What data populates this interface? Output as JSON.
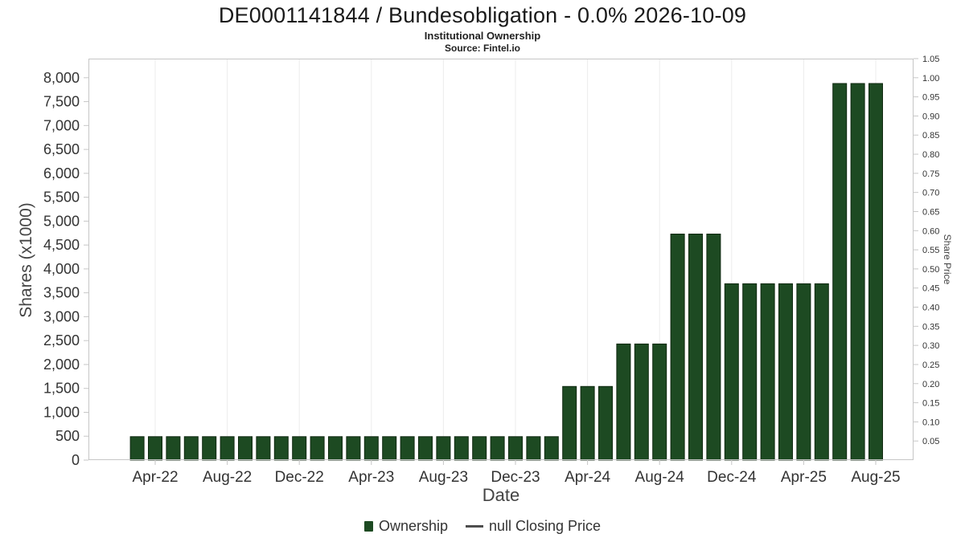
{
  "colors": {
    "bar": "#1d4a22",
    "bar_border": "#102911",
    "grid": "#ececec",
    "axis": "#c6c6c6",
    "text": "#333333"
  },
  "chart_data": {
    "type": "bar",
    "title": "DE0001141844 / Bundesobligation - 0.0% 2026-10-09",
    "subtitle": "Institutional Ownership",
    "source": "Source: Fintel.io",
    "xlabel": "Date",
    "ylabel_left": "Shares (x1000)",
    "ylabel_right": "Share Price",
    "legend": {
      "ownership": "Ownership",
      "price": "null Closing Price"
    },
    "x": [
      "Mar-22",
      "Apr-22",
      "May-22",
      "Jun-22",
      "Jul-22",
      "Aug-22",
      "Sep-22",
      "Oct-22",
      "Nov-22",
      "Dec-22",
      "Jan-23",
      "Feb-23",
      "Mar-23",
      "Apr-23",
      "May-23",
      "Jun-23",
      "Jul-23",
      "Aug-23",
      "Sep-23",
      "Oct-23",
      "Nov-23",
      "Dec-23",
      "Jan-24",
      "Feb-24",
      "Mar-24",
      "Apr-24",
      "May-24",
      "Jun-24",
      "Jul-24",
      "Aug-24",
      "Sep-24",
      "Oct-24",
      "Nov-24",
      "Dec-24",
      "Jan-25",
      "Feb-25",
      "Mar-25",
      "Apr-25",
      "May-25",
      "Jun-25",
      "Jul-25",
      "Aug-25"
    ],
    "values": [
      490,
      490,
      490,
      490,
      490,
      490,
      490,
      490,
      490,
      490,
      490,
      490,
      490,
      490,
      490,
      490,
      490,
      490,
      490,
      490,
      490,
      490,
      490,
      490,
      1540,
      1540,
      1540,
      2430,
      2430,
      2430,
      4730,
      4730,
      4730,
      3690,
      3690,
      3690,
      3690,
      3690,
      3690,
      7880,
      7880,
      7880
    ],
    "x_tick_labels": [
      "Apr-22",
      "Aug-22",
      "Dec-22",
      "Apr-23",
      "Aug-23",
      "Dec-23",
      "Apr-24",
      "Aug-24",
      "Dec-24",
      "Apr-25",
      "Aug-25"
    ],
    "y_left": {
      "min": 0,
      "max": 8400,
      "tick_step": 500,
      "tick_max": 8000
    },
    "y_right": {
      "min": 0,
      "max": 1.05,
      "tick_step": 0.05
    },
    "grid": "vertical",
    "legend_position": "bottom"
  }
}
